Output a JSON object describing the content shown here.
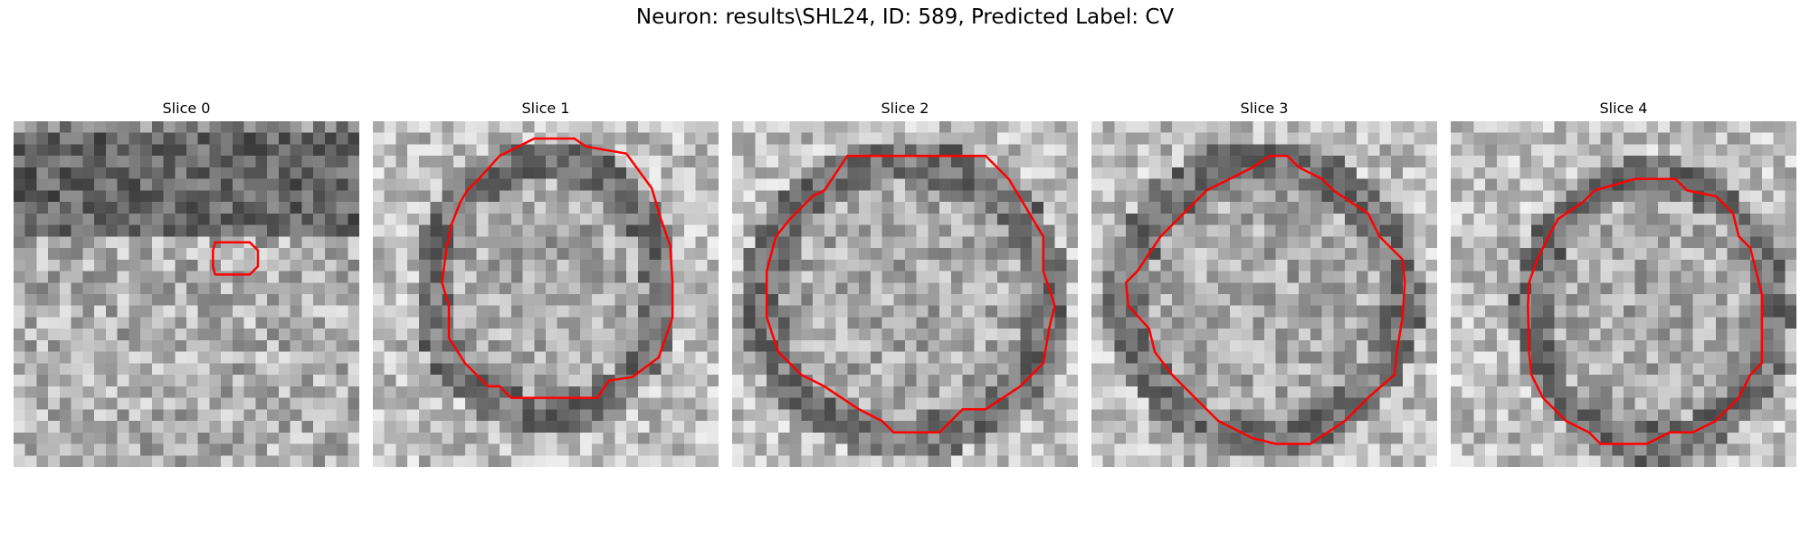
{
  "figure": {
    "title": "Neuron: results\\SHL24, ID: 589, Predicted Label: CV"
  },
  "colors": {
    "contour": "#ff0000",
    "background": "#ffffff"
  },
  "panels": [
    {
      "title": "Slice 0"
    },
    {
      "title": "Slice 1"
    },
    {
      "title": "Slice 2"
    },
    {
      "title": "Slice 3"
    },
    {
      "title": "Slice 4"
    }
  ]
}
